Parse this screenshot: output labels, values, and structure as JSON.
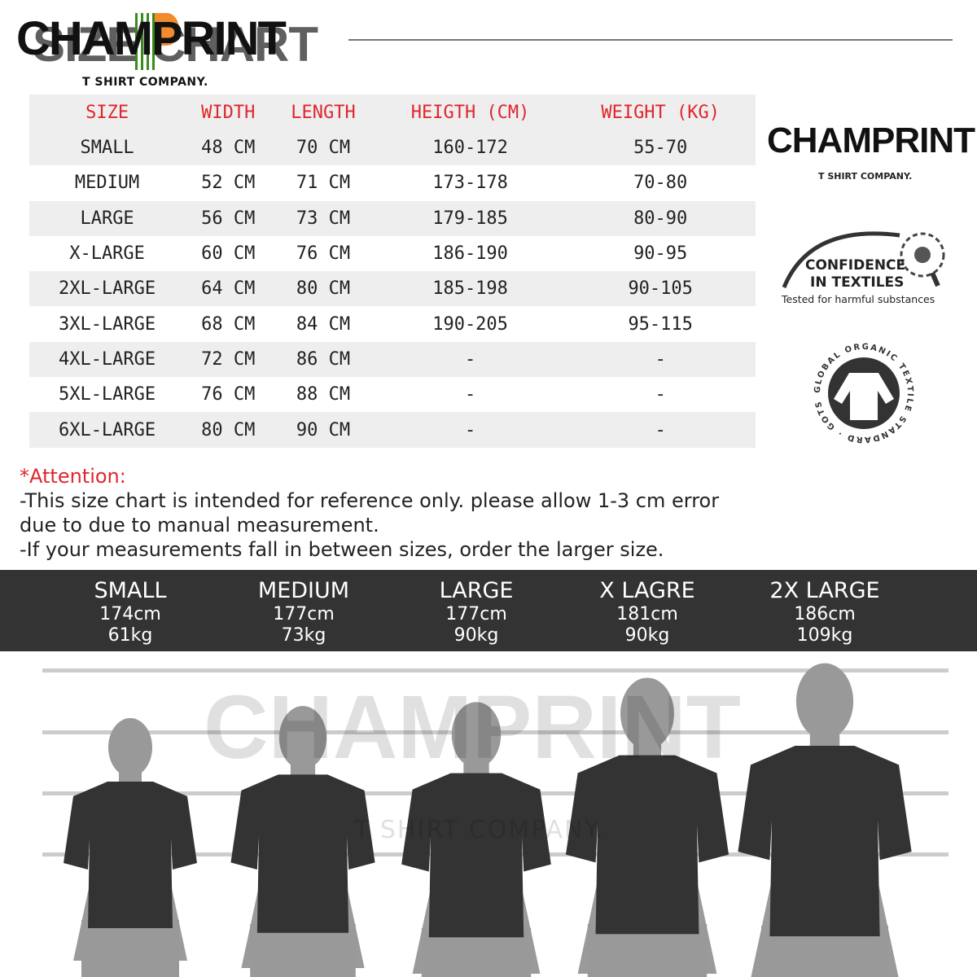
{
  "header": {
    "brand": "CHAMPRINT",
    "ghost_title": "SIZE CHART",
    "tagline": "T SHIRT COMPANY."
  },
  "table": {
    "headers": [
      "SIZE",
      "WIDTH",
      "LENGTH",
      "HEIGTH (CM)",
      "WEIGHT (KG)"
    ],
    "rows": [
      [
        "SMALL",
        "48 CM",
        "70 CM",
        "160-172",
        "55-70"
      ],
      [
        "MEDIUM",
        "52 CM",
        "71 CM",
        "173-178",
        "70-80"
      ],
      [
        "LARGE",
        "56 CM",
        "73 CM",
        "179-185",
        "80-90"
      ],
      [
        "X-LARGE",
        "60 CM",
        "76 CM",
        "186-190",
        "90-95"
      ],
      [
        "2XL-LARGE",
        "64 CM",
        "80 CM",
        "185-198",
        "90-105"
      ],
      [
        "3XL-LARGE",
        "68 CM",
        "84 CM",
        "190-205",
        "95-115"
      ],
      [
        "4XL-LARGE",
        "72 CM",
        "86 CM",
        "-",
        "-"
      ],
      [
        "5XL-LARGE",
        "76 CM",
        "88 CM",
        "-",
        "-"
      ],
      [
        "6XL-LARGE",
        "80 CM",
        "90 CM",
        "-",
        "-"
      ]
    ]
  },
  "side": {
    "brand": "CHAMPRINT",
    "tagline": "T SHIRT COMPANY.",
    "cert1_line1": "CONFIDENCE",
    "cert1_line2": "IN TEXTILES",
    "cert1_sub": "Tested for harmful substances",
    "cert2_text": "GLOBAL ORGANIC TEXTILE STANDARD · GOTS ·"
  },
  "attention": {
    "title": "*Attention:",
    "lines": [
      "-This size chart is intended for reference only. please allow 1-3 cm error",
      "due to due to manual measurement.",
      "-If your measurements fall in between sizes, order the larger size."
    ]
  },
  "models": [
    {
      "size": "SMALL",
      "height": "174cm",
      "weight": "61kg"
    },
    {
      "size": "MEDIUM",
      "height": "177cm",
      "weight": "73kg"
    },
    {
      "size": "LARGE",
      "height": "177cm",
      "weight": "90kg"
    },
    {
      "size": "X LAGRE",
      "height": "181cm",
      "weight": "90kg"
    },
    {
      "size": "2X LARGE",
      "height": "186cm",
      "weight": "109kg"
    }
  ],
  "watermark": {
    "brand": "CHAMPRINT",
    "tagline": "T SHIRT COMPANY."
  },
  "colors": {
    "accent": "#e0262e",
    "orange": "#f28a2e",
    "green": "#3a8a1e",
    "band": "#333333"
  }
}
